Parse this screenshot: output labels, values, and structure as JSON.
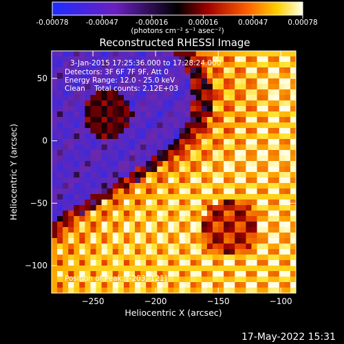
{
  "chart_data": {
    "type": "heatmap",
    "title": "Reconstructed RHESSI Image",
    "xlabel": "Heliocentric X (arcsec)",
    "ylabel": "Heliocentric Y (arcsec)",
    "xlim": [
      -283,
      -88
    ],
    "ylim": [
      -122,
      72
    ],
    "xticks": [
      -250,
      -200,
      -150,
      -100
    ],
    "yticks": [
      -100,
      -50,
      0,
      50
    ],
    "colorbar": {
      "unit_label": "(photons cm⁻² s⁻¹ asec⁻²)",
      "ticks": [
        "-0.00078",
        "-0.00047",
        "-0.00016",
        "0.00016",
        "0.00047",
        "0.00078"
      ],
      "range": [
        -0.00078,
        0.00078
      ]
    },
    "annotations": [
      "3-Jan-2015 17:25:36.000 to 17:28:24.000",
      "Detectors: 3F 6F 7F 9F, Att 0",
      "Energy Range: 12.0 - 25.0 keV",
      "Clean    Total counts: 2.12E+03"
    ],
    "peak_label": "Position of Peak: [-203,-121]",
    "colors": {
      "low": "#2030ff",
      "mid_low": "#6a1fb0",
      "zero": "#000000",
      "mid_high": "#d02000",
      "high": "#ffffe8"
    }
  },
  "footer": "17-May-2022 15:31"
}
